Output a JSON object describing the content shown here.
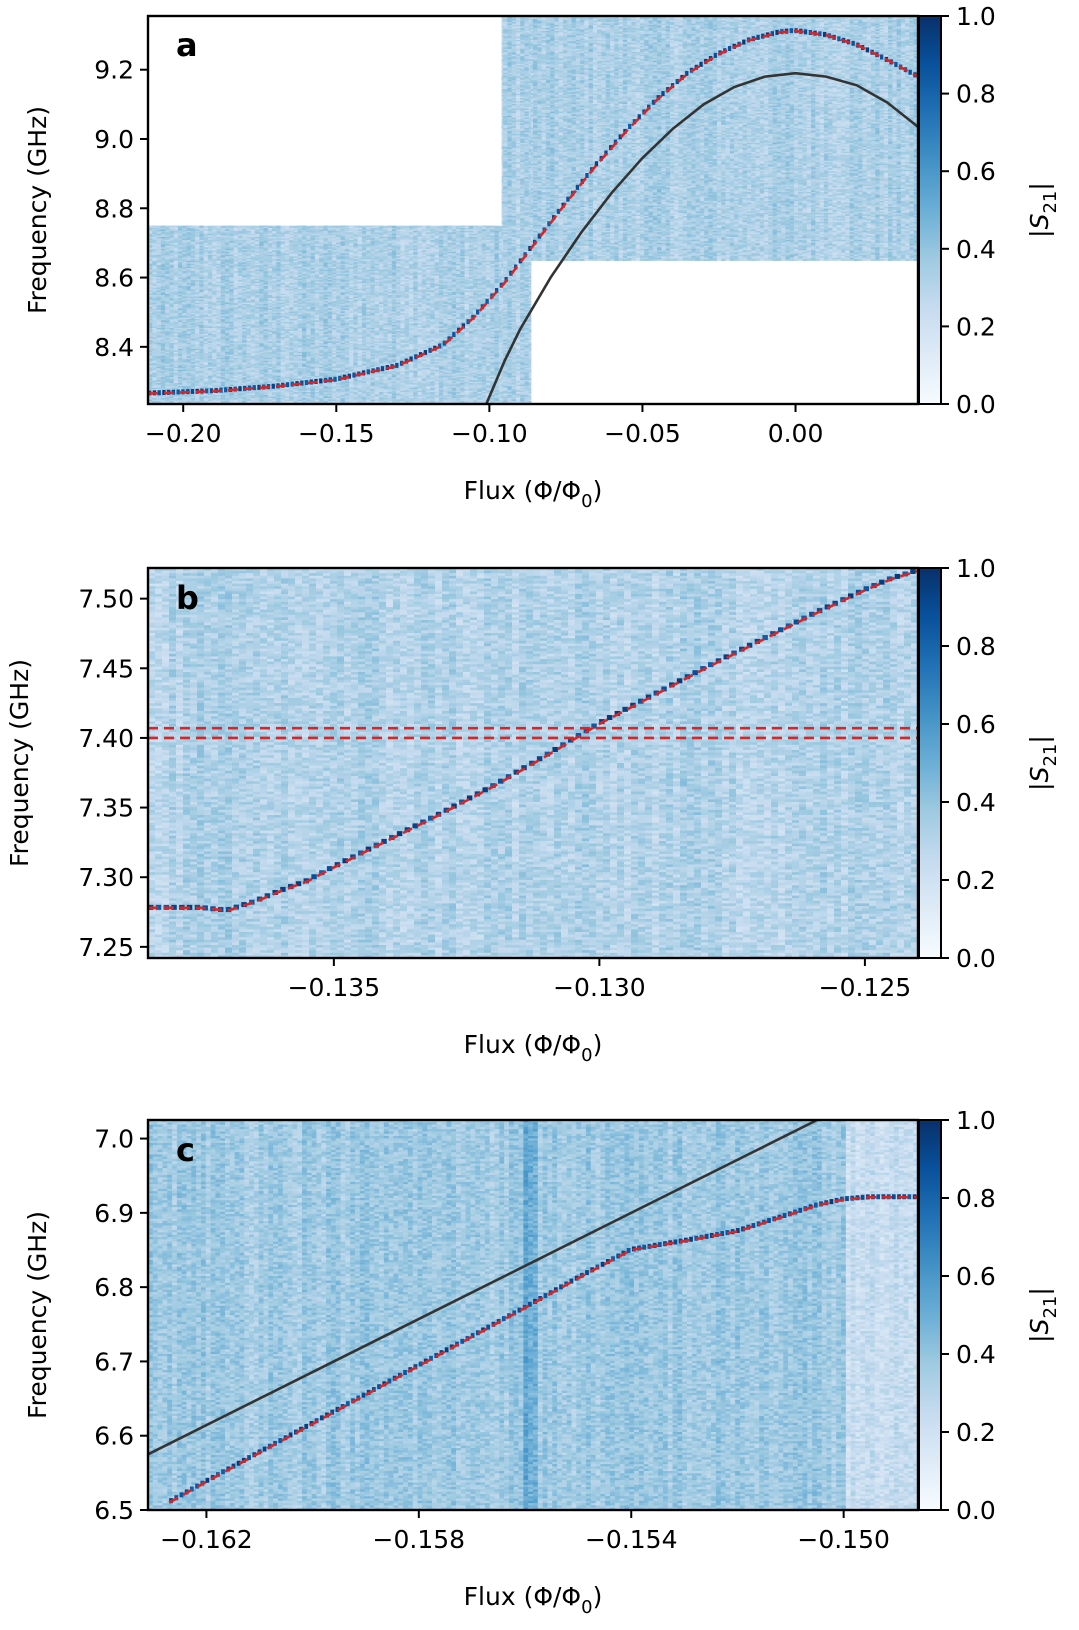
{
  "chart_data": [
    {
      "type": "heatmap",
      "panel_label": "a",
      "xlabel": "Flux (Φ/Φ",
      "xlabel_sub": "0",
      "xlabel_close": ")",
      "ylabel": "Frequency (GHz)",
      "xlim": [
        -0.2115,
        0.04
      ],
      "ylim": [
        8.235,
        9.355
      ],
      "xticks": [
        -0.2,
        -0.15,
        -0.1,
        -0.05,
        0.0
      ],
      "xtick_labels": [
        "−0.20",
        "−0.15",
        "−0.10",
        "−0.05",
        "0.00"
      ],
      "yticks": [
        8.4,
        8.6,
        8.8,
        9.0,
        9.2
      ],
      "ytick_labels": [
        "8.4",
        "8.6",
        "8.8",
        "9.0",
        "9.2"
      ],
      "data_regions": [
        {
          "x": [
            -0.2115,
            -0.096
          ],
          "y": [
            8.235,
            8.75
          ]
        },
        {
          "x": [
            -0.096,
            -0.0865
          ],
          "y": [
            8.235,
            9.355
          ]
        },
        {
          "x": [
            -0.0865,
            0.04
          ],
          "y": [
            8.65,
            9.355
          ]
        }
      ],
      "noise_columns": 180,
      "noise_rows": 260,
      "noise_base": 0.33,
      "noise_spread": 0.16,
      "fit_curve": {
        "style": "red-dashed",
        "color": "#d62728",
        "points": [
          [
            -0.2115,
            8.265
          ],
          [
            -0.19,
            8.272
          ],
          [
            -0.17,
            8.285
          ],
          [
            -0.15,
            8.305
          ],
          [
            -0.13,
            8.345
          ],
          [
            -0.115,
            8.405
          ],
          [
            -0.105,
            8.485
          ],
          [
            -0.095,
            8.585
          ],
          [
            -0.085,
            8.7
          ],
          [
            -0.075,
            8.815
          ],
          [
            -0.065,
            8.925
          ],
          [
            -0.055,
            9.025
          ],
          [
            -0.045,
            9.115
          ],
          [
            -0.035,
            9.19
          ],
          [
            -0.025,
            9.245
          ],
          [
            -0.015,
            9.285
          ],
          [
            -0.005,
            9.308
          ],
          [
            0.0,
            9.312
          ],
          [
            0.01,
            9.3
          ],
          [
            0.02,
            9.272
          ],
          [
            0.03,
            9.228
          ],
          [
            0.04,
            9.18
          ]
        ]
      },
      "model_curve": {
        "style": "black-solid",
        "color": "#333333",
        "points": [
          [
            -0.101,
            8.235
          ],
          [
            -0.095,
            8.36
          ],
          [
            -0.09,
            8.45
          ],
          [
            -0.08,
            8.6
          ],
          [
            -0.07,
            8.73
          ],
          [
            -0.06,
            8.845
          ],
          [
            -0.05,
            8.945
          ],
          [
            -0.04,
            9.03
          ],
          [
            -0.03,
            9.1
          ],
          [
            -0.02,
            9.15
          ],
          [
            -0.01,
            9.18
          ],
          [
            0.0,
            9.19
          ],
          [
            0.01,
            9.18
          ],
          [
            0.02,
            9.155
          ],
          [
            0.03,
            9.105
          ],
          [
            0.04,
            9.035
          ]
        ]
      },
      "colorbar": {
        "label": "|S",
        "label_sub": "21",
        "label_close": "|",
        "range": [
          0.0,
          1.0
        ],
        "ticks": [
          0.0,
          0.2,
          0.4,
          0.6,
          0.8,
          1.0
        ],
        "tick_labels": [
          "0.0",
          "0.2",
          "0.4",
          "0.6",
          "0.8",
          "1.0"
        ],
        "colormap": "Blues"
      }
    },
    {
      "type": "heatmap",
      "panel_label": "b",
      "xlabel": "Flux (Φ/Φ",
      "xlabel_sub": "0",
      "xlabel_close": ")",
      "ylabel": "Frequency (GHz)",
      "xlim": [
        -0.1385,
        -0.124
      ],
      "ylim": [
        7.242,
        7.522
      ],
      "xticks": [
        -0.135,
        -0.13,
        -0.125
      ],
      "xtick_labels": [
        "−0.135",
        "−0.130",
        "−0.125"
      ],
      "yticks": [
        7.25,
        7.3,
        7.35,
        7.4,
        7.45,
        7.5
      ],
      "ytick_labels": [
        "7.25",
        "7.30",
        "7.35",
        "7.40",
        "7.45",
        "7.50"
      ],
      "data_regions": [
        {
          "x": [
            -0.1385,
            -0.124
          ],
          "y": [
            7.242,
            7.522
          ]
        }
      ],
      "noise_columns": 110,
      "noise_rows": 150,
      "noise_base": 0.31,
      "noise_spread": 0.17,
      "fit_curve": {
        "style": "red-dashed",
        "color": "#d62728",
        "points": [
          [
            -0.1385,
            7.278
          ],
          [
            -0.1375,
            7.278
          ],
          [
            -0.137,
            7.276
          ],
          [
            -0.1365,
            7.282
          ],
          [
            -0.136,
            7.29
          ],
          [
            -0.1355,
            7.297
          ],
          [
            -0.135,
            7.307
          ],
          [
            -0.134,
            7.326
          ],
          [
            -0.133,
            7.345
          ],
          [
            -0.132,
            7.365
          ],
          [
            -0.131,
            7.387
          ],
          [
            -0.13,
            7.41
          ],
          [
            -0.129,
            7.43
          ],
          [
            -0.128,
            7.45
          ],
          [
            -0.127,
            7.469
          ],
          [
            -0.126,
            7.488
          ],
          [
            -0.125,
            7.506
          ],
          [
            -0.1245,
            7.514
          ],
          [
            -0.124,
            7.52
          ]
        ]
      },
      "ref_lines": [
        7.407,
        7.4
      ],
      "model_curve": null,
      "colorbar": {
        "label": "|S",
        "label_sub": "21",
        "label_close": "|",
        "range": [
          0.0,
          1.0
        ],
        "ticks": [
          0.0,
          0.2,
          0.4,
          0.6,
          0.8,
          1.0
        ],
        "tick_labels": [
          "0.0",
          "0.2",
          "0.4",
          "0.6",
          "0.8",
          "1.0"
        ],
        "colormap": "Blues"
      }
    },
    {
      "type": "heatmap",
      "panel_label": "c",
      "xlabel": "Flux (Φ/Φ",
      "xlabel_sub": "0",
      "xlabel_close": ")",
      "ylabel": "Frequency (GHz)",
      "xlim": [
        -0.1631,
        -0.1486
      ],
      "ylim": [
        6.5,
        7.025
      ],
      "xticks": [
        -0.162,
        -0.158,
        -0.154,
        -0.15
      ],
      "xtick_labels": [
        "−0.162",
        "−0.158",
        "−0.154",
        "−0.150"
      ],
      "yticks": [
        6.5,
        6.6,
        6.7,
        6.8,
        6.9,
        7.0
      ],
      "ytick_labels": [
        "6.5",
        "6.6",
        "6.7",
        "6.8",
        "6.9",
        "7.0"
      ],
      "data_regions": [
        {
          "x": [
            -0.1631,
            -0.1486
          ],
          "y": [
            6.5,
            7.025
          ]
        }
      ],
      "noise_columns": 160,
      "noise_rows": 170,
      "noise_base": 0.37,
      "noise_spread": 0.16,
      "fit_curve": {
        "style": "red-dashed",
        "color": "#d62728",
        "points": [
          [
            -0.1627,
            6.51
          ],
          [
            -0.162,
            6.538
          ],
          [
            -0.161,
            6.577
          ],
          [
            -0.16,
            6.616
          ],
          [
            -0.159,
            6.655
          ],
          [
            -0.158,
            6.694
          ],
          [
            -0.157,
            6.733
          ],
          [
            -0.156,
            6.772
          ],
          [
            -0.155,
            6.812
          ],
          [
            -0.154,
            6.85
          ],
          [
            -0.153,
            6.862
          ],
          [
            -0.152,
            6.875
          ],
          [
            -0.151,
            6.898
          ],
          [
            -0.1505,
            6.91
          ],
          [
            -0.15,
            6.918
          ],
          [
            -0.1495,
            6.921
          ],
          [
            -0.1486,
            6.921
          ]
        ]
      },
      "model_curve": {
        "style": "black-solid",
        "color": "#333333",
        "points": [
          [
            -0.1631,
            6.575
          ],
          [
            -0.1505,
            7.025
          ]
        ]
      },
      "colorbar": {
        "label": "|S",
        "label_sub": "21",
        "label_close": "|",
        "range": [
          0.0,
          1.0
        ],
        "ticks": [
          0.0,
          0.2,
          0.4,
          0.6,
          0.8,
          1.0
        ],
        "tick_labels": [
          "0.0",
          "0.2",
          "0.4",
          "0.6",
          "0.8",
          "1.0"
        ],
        "colormap": "Blues"
      }
    }
  ]
}
